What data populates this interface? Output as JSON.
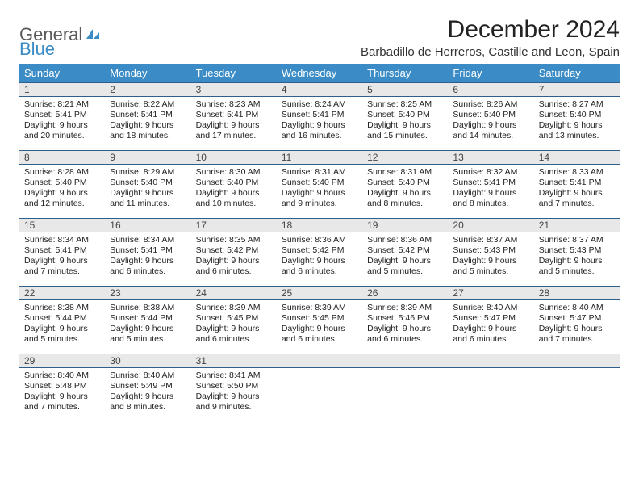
{
  "brand": {
    "part1": "General",
    "part2": "Blue",
    "logo_color": "#3b8cc6"
  },
  "title": "December 2024",
  "location": "Barbadillo de Herreros, Castille and Leon, Spain",
  "header_bg": "#3b8cc6",
  "daynum_bg": "#e8e8e8",
  "border_color": "#2c5f8a",
  "text_color": "#222222",
  "font_family": "Arial",
  "table": {
    "columns": [
      "Sunday",
      "Monday",
      "Tuesday",
      "Wednesday",
      "Thursday",
      "Friday",
      "Saturday"
    ],
    "weeks": [
      [
        {
          "n": "1",
          "sr": "8:21 AM",
          "ss": "5:41 PM",
          "dl": "9 hours and 20 minutes."
        },
        {
          "n": "2",
          "sr": "8:22 AM",
          "ss": "5:41 PM",
          "dl": "9 hours and 18 minutes."
        },
        {
          "n": "3",
          "sr": "8:23 AM",
          "ss": "5:41 PM",
          "dl": "9 hours and 17 minutes."
        },
        {
          "n": "4",
          "sr": "8:24 AM",
          "ss": "5:41 PM",
          "dl": "9 hours and 16 minutes."
        },
        {
          "n": "5",
          "sr": "8:25 AM",
          "ss": "5:40 PM",
          "dl": "9 hours and 15 minutes."
        },
        {
          "n": "6",
          "sr": "8:26 AM",
          "ss": "5:40 PM",
          "dl": "9 hours and 14 minutes."
        },
        {
          "n": "7",
          "sr": "8:27 AM",
          "ss": "5:40 PM",
          "dl": "9 hours and 13 minutes."
        }
      ],
      [
        {
          "n": "8",
          "sr": "8:28 AM",
          "ss": "5:40 PM",
          "dl": "9 hours and 12 minutes."
        },
        {
          "n": "9",
          "sr": "8:29 AM",
          "ss": "5:40 PM",
          "dl": "9 hours and 11 minutes."
        },
        {
          "n": "10",
          "sr": "8:30 AM",
          "ss": "5:40 PM",
          "dl": "9 hours and 10 minutes."
        },
        {
          "n": "11",
          "sr": "8:31 AM",
          "ss": "5:40 PM",
          "dl": "9 hours and 9 minutes."
        },
        {
          "n": "12",
          "sr": "8:31 AM",
          "ss": "5:40 PM",
          "dl": "9 hours and 8 minutes."
        },
        {
          "n": "13",
          "sr": "8:32 AM",
          "ss": "5:41 PM",
          "dl": "9 hours and 8 minutes."
        },
        {
          "n": "14",
          "sr": "8:33 AM",
          "ss": "5:41 PM",
          "dl": "9 hours and 7 minutes."
        }
      ],
      [
        {
          "n": "15",
          "sr": "8:34 AM",
          "ss": "5:41 PM",
          "dl": "9 hours and 7 minutes."
        },
        {
          "n": "16",
          "sr": "8:34 AM",
          "ss": "5:41 PM",
          "dl": "9 hours and 6 minutes."
        },
        {
          "n": "17",
          "sr": "8:35 AM",
          "ss": "5:42 PM",
          "dl": "9 hours and 6 minutes."
        },
        {
          "n": "18",
          "sr": "8:36 AM",
          "ss": "5:42 PM",
          "dl": "9 hours and 6 minutes."
        },
        {
          "n": "19",
          "sr": "8:36 AM",
          "ss": "5:42 PM",
          "dl": "9 hours and 5 minutes."
        },
        {
          "n": "20",
          "sr": "8:37 AM",
          "ss": "5:43 PM",
          "dl": "9 hours and 5 minutes."
        },
        {
          "n": "21",
          "sr": "8:37 AM",
          "ss": "5:43 PM",
          "dl": "9 hours and 5 minutes."
        }
      ],
      [
        {
          "n": "22",
          "sr": "8:38 AM",
          "ss": "5:44 PM",
          "dl": "9 hours and 5 minutes."
        },
        {
          "n": "23",
          "sr": "8:38 AM",
          "ss": "5:44 PM",
          "dl": "9 hours and 5 minutes."
        },
        {
          "n": "24",
          "sr": "8:39 AM",
          "ss": "5:45 PM",
          "dl": "9 hours and 6 minutes."
        },
        {
          "n": "25",
          "sr": "8:39 AM",
          "ss": "5:45 PM",
          "dl": "9 hours and 6 minutes."
        },
        {
          "n": "26",
          "sr": "8:39 AM",
          "ss": "5:46 PM",
          "dl": "9 hours and 6 minutes."
        },
        {
          "n": "27",
          "sr": "8:40 AM",
          "ss": "5:47 PM",
          "dl": "9 hours and 6 minutes."
        },
        {
          "n": "28",
          "sr": "8:40 AM",
          "ss": "5:47 PM",
          "dl": "9 hours and 7 minutes."
        }
      ],
      [
        {
          "n": "29",
          "sr": "8:40 AM",
          "ss": "5:48 PM",
          "dl": "9 hours and 7 minutes."
        },
        {
          "n": "30",
          "sr": "8:40 AM",
          "ss": "5:49 PM",
          "dl": "9 hours and 8 minutes."
        },
        {
          "n": "31",
          "sr": "8:41 AM",
          "ss": "5:50 PM",
          "dl": "9 hours and 9 minutes."
        },
        {
          "n": "",
          "sr": "",
          "ss": "",
          "dl": ""
        },
        {
          "n": "",
          "sr": "",
          "ss": "",
          "dl": ""
        },
        {
          "n": "",
          "sr": "",
          "ss": "",
          "dl": ""
        },
        {
          "n": "",
          "sr": "",
          "ss": "",
          "dl": ""
        }
      ]
    ],
    "labels": {
      "sunrise": "Sunrise:",
      "sunset": "Sunset:",
      "daylight": "Daylight:"
    }
  }
}
